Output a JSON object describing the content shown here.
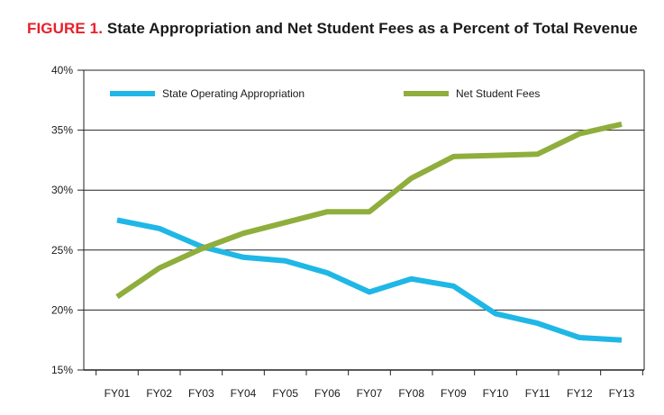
{
  "title": {
    "figure_label": "FIGURE 1.",
    "text": "State Appropriation and Net Student Fees as a Percent of Total Revenue"
  },
  "chart_data": {
    "type": "line",
    "title": "FIGURE 1. State Appropriation and Net Student Fees as a Percent of Total Revenue",
    "xlabel": "",
    "ylabel": "",
    "categories": [
      "FY01",
      "FY02",
      "FY03",
      "FY04",
      "FY05",
      "FY06",
      "FY07",
      "FY08",
      "FY09",
      "FY10",
      "FY11",
      "FY12",
      "FY13"
    ],
    "ylim": [
      15,
      40
    ],
    "yticks": [
      15,
      20,
      25,
      30,
      35,
      40
    ],
    "ytick_labels": [
      "15%",
      "20%",
      "25%",
      "30%",
      "35%",
      "40%"
    ],
    "grid": true,
    "legend_position": "top",
    "series": [
      {
        "name": "State Operating Appropriation",
        "color": "#1fb7e6",
        "values": [
          27.5,
          26.8,
          25.3,
          24.4,
          24.1,
          23.1,
          21.5,
          22.6,
          22.0,
          19.7,
          18.9,
          17.7,
          17.5
        ]
      },
      {
        "name": "Net Student Fees",
        "color": "#8fae3c",
        "values": [
          21.1,
          23.5,
          25.1,
          26.4,
          27.3,
          28.2,
          28.2,
          31.0,
          32.8,
          32.9,
          33.0,
          34.7,
          35.5
        ]
      }
    ]
  }
}
